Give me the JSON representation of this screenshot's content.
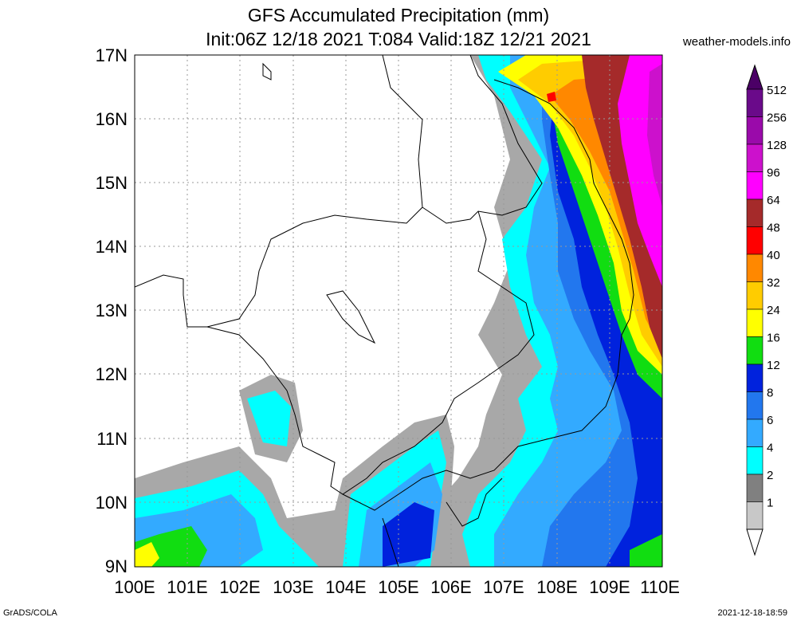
{
  "header": {
    "title_line1": "GFS Accumulated Precipitation (mm)",
    "title_line2": "Init:06Z 12/18 2021 T:084 Valid:18Z 12/21 2021",
    "source": "weather-models.info"
  },
  "footer": {
    "left": "GrADS/COLA",
    "right": "2021-12-18-18:59"
  },
  "axes": {
    "lat_labels": [
      "17N",
      "16N",
      "15N",
      "14N",
      "13N",
      "12N",
      "11N",
      "10N",
      "9N"
    ],
    "lon_labels": [
      "100E",
      "101E",
      "102E",
      "103E",
      "104E",
      "105E",
      "106E",
      "107E",
      "108E",
      "109E",
      "110E"
    ]
  },
  "legend": {
    "levels": [
      "512",
      "256",
      "128",
      "96",
      "64",
      "48",
      "40",
      "32",
      "24",
      "16",
      "12",
      "8",
      "6",
      "4",
      "2",
      "1"
    ],
    "colors": [
      "#6a0a8a",
      "#9a0aaa",
      "#cc11cc",
      "#ff00ff",
      "#a52a2a",
      "#ff0000",
      "#ff8800",
      "#ffcc00",
      "#ffff00",
      "#11dd11",
      "#0022dd",
      "#2277ee",
      "#33aaff",
      "#00ffff",
      "#808080",
      "#c8c8c8"
    ],
    "top_arrow_color": "#4b0066",
    "bottom_color": "#ffffff"
  }
}
